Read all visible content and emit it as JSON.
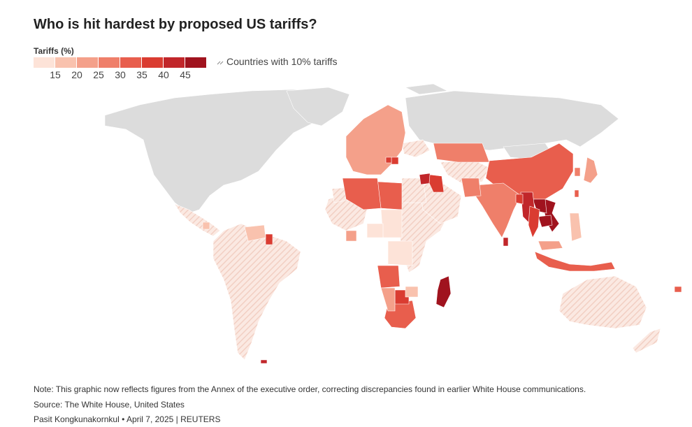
{
  "header": {
    "title": "Who is hit hardest by proposed US tariffs?"
  },
  "legend": {
    "title": "Tariffs (%)",
    "colors": [
      "#fde3d8",
      "#f9c2ae",
      "#f4a08a",
      "#ef7f6a",
      "#e85e4d",
      "#da3c31",
      "#c1262a",
      "#a0131e"
    ],
    "ticks": [
      "15",
      "20",
      "25",
      "30",
      "35",
      "40",
      "45"
    ],
    "hatch_label": "Countries with 10% tariffs",
    "hatch_color": "#f2cfc3"
  },
  "map": {
    "land_color": "#dcdcdc",
    "regions": [
      {
        "name": "china",
        "value": 34
      },
      {
        "name": "vietnam",
        "value": 46
      },
      {
        "name": "cambodia",
        "value": 49
      },
      {
        "name": "laos",
        "value": 48
      },
      {
        "name": "myanmar",
        "value": 44
      },
      {
        "name": "thailand",
        "value": 36
      },
      {
        "name": "india",
        "value": 26
      },
      {
        "name": "bangladesh",
        "value": 37
      },
      {
        "name": "sri-lanka",
        "value": 44
      },
      {
        "name": "madagascar",
        "value": 47
      },
      {
        "name": "lesotho",
        "value": 50
      },
      {
        "name": "syria",
        "value": 41
      },
      {
        "name": "iraq",
        "value": 39
      },
      {
        "name": "libya",
        "value": 31
      },
      {
        "name": "algeria",
        "value": 30
      },
      {
        "name": "south-africa",
        "value": 30
      },
      {
        "name": "angola",
        "value": 32
      },
      {
        "name": "botswana",
        "value": 37
      },
      {
        "name": "namibia",
        "value": 21
      },
      {
        "name": "kazakhstan",
        "value": 27
      },
      {
        "name": "europe",
        "value": 20
      },
      {
        "name": "indonesia",
        "value": 32
      },
      {
        "name": "japan",
        "value": 24
      },
      {
        "name": "serbia",
        "value": 37
      },
      {
        "name": "bosnia",
        "value": 35
      },
      {
        "name": "guyana",
        "value": 38
      },
      {
        "name": "venezuela",
        "value": 15
      },
      {
        "name": "nicaragua",
        "value": 18
      },
      {
        "name": "chad",
        "value": 13
      },
      {
        "name": "dr-congo",
        "value": 11
      },
      {
        "name": "nigeria",
        "value": 14
      },
      {
        "name": "cote-divoire",
        "value": 21
      },
      {
        "name": "zimbabwe",
        "value": 18
      },
      {
        "name": "malaysia",
        "value": 24
      },
      {
        "name": "philippines",
        "value": 17
      },
      {
        "name": "pakistan",
        "value": 29
      },
      {
        "name": "taiwan",
        "value": 32
      },
      {
        "name": "south-korea",
        "value": 25
      },
      {
        "name": "fiji",
        "value": 32
      },
      {
        "name": "falklands",
        "value": 41
      }
    ]
  },
  "footer": {
    "note": "Note: This graphic now reflects figures from the Annex of the executive order, correcting discrepancies found in earlier White House communications.",
    "source": "Source: The White House, United States",
    "byline": "Pasit Kongkunakornkul • April 7, 2025 | REUTERS"
  }
}
